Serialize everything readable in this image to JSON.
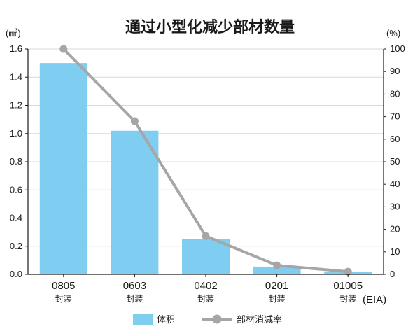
{
  "chart_data": {
    "type": "bar",
    "title": "通过小型化减少部材数量",
    "categories": [
      "0805",
      "0603",
      "0402",
      "0201",
      "01005"
    ],
    "category_sublabels": [
      "封装",
      "封装",
      "封装",
      "封装",
      "封装"
    ],
    "x_unit": "(EIA)",
    "y_left": {
      "unit": "(㎣)",
      "ylim": [
        0,
        1.6
      ],
      "ticks": [
        "0.0",
        "0.2",
        "0.4",
        "0.6",
        "0.8",
        "1.0",
        "1.2",
        "1.4",
        "1.6"
      ]
    },
    "y_right": {
      "unit": "(%)",
      "ylim": [
        0,
        100
      ],
      "ticks": [
        "0",
        "10",
        "20",
        "30",
        "40",
        "50",
        "60",
        "70",
        "80",
        "90",
        "100"
      ]
    },
    "series": [
      {
        "name": "体积",
        "kind": "bar",
        "axis": "left",
        "color": "#7fcdf0",
        "values": [
          1.5,
          1.02,
          0.25,
          0.055,
          0.015
        ]
      },
      {
        "name": "部材消减率",
        "kind": "line",
        "axis": "right",
        "color": "#a6a6a6",
        "values": [
          100,
          68,
          17,
          4,
          1.2
        ]
      }
    ],
    "grid": true,
    "legend_position": "bottom-center"
  }
}
